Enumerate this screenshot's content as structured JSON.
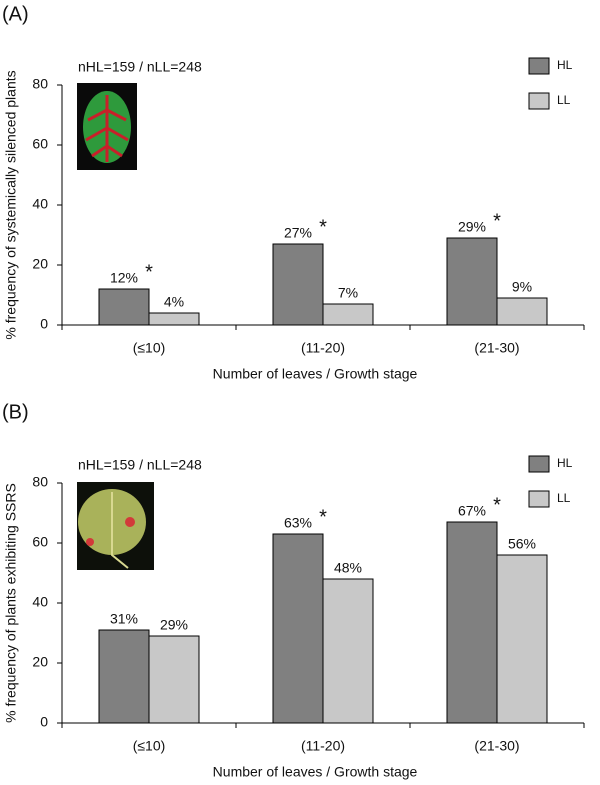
{
  "chart_data": [
    {
      "type": "bar",
      "panel": "(A)",
      "annotation": "nHL=159 / nLL=248",
      "ylabel": "% frequency of systemically silenced plants",
      "xlabel": "Number of leaves / Growth stage",
      "categories": [
        "(≤10)",
        "(11-20)",
        "(21-30)"
      ],
      "series": [
        {
          "name": "HL",
          "color": "#808080",
          "values": [
            12,
            27,
            29
          ],
          "value_labels": [
            "12%",
            "27%",
            "29%"
          ],
          "significance": [
            "*",
            "*",
            "*"
          ]
        },
        {
          "name": "LL",
          "color": "#c8c8c8",
          "values": [
            4,
            7,
            9
          ],
          "value_labels": [
            "4%",
            "7%",
            "9%"
          ]
        }
      ],
      "ylim": [
        0,
        80
      ],
      "yticks": [
        0,
        20,
        40,
        60,
        80
      ],
      "legend": "upper right"
    },
    {
      "type": "bar",
      "panel": "(B)",
      "annotation": "nHL=159 / nLL=248",
      "ylabel": "% frequency of plants exhibiting SSRS",
      "xlabel": "Number of leaves / Growth stage",
      "categories": [
        "(≤10)",
        "(11-20)",
        "(21-30)"
      ],
      "series": [
        {
          "name": "HL",
          "color": "#808080",
          "values": [
            31,
            63,
            67
          ],
          "value_labels": [
            "31%",
            "63%",
            "67%"
          ],
          "significance": [
            null,
            "*",
            "*"
          ]
        },
        {
          "name": "LL",
          "color": "#c8c8c8",
          "values": [
            29,
            48,
            56
          ],
          "value_labels": [
            "29%",
            "48%",
            "56%"
          ]
        }
      ],
      "ylim": [
        0,
        80
      ],
      "yticks": [
        0,
        20,
        40,
        60,
        80
      ],
      "legend": "upper right"
    }
  ]
}
